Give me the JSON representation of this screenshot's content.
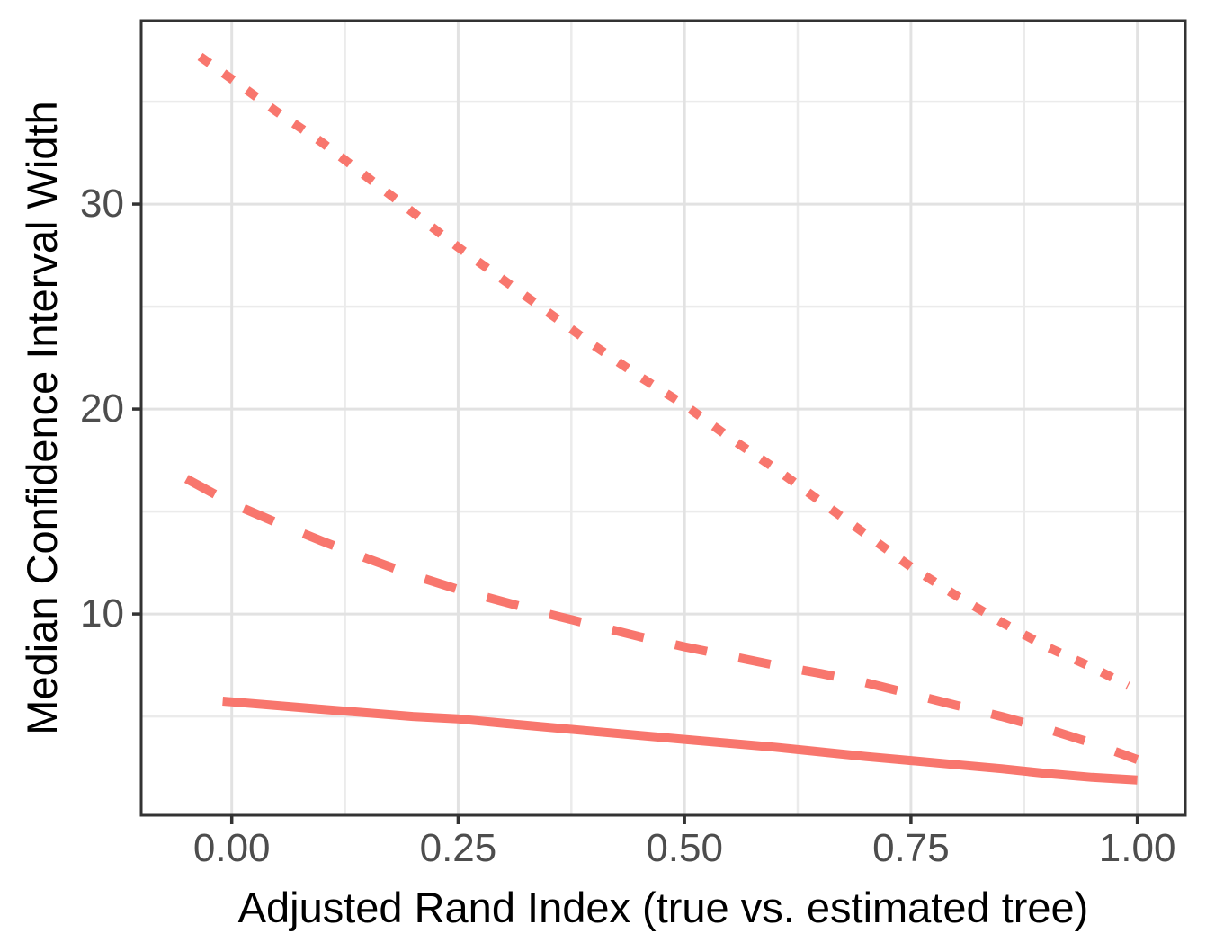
{
  "chart_data": {
    "type": "line",
    "title": "",
    "xlabel": "Adjusted Rand Index (true vs. estimated tree)",
    "ylabel": "Median Confidence Interval Width",
    "xlim": [
      -0.1,
      1.053
    ],
    "ylim": [
      0.18,
      38.95
    ],
    "grid": true,
    "legend_position": "none",
    "x_ticks": {
      "values": [
        0,
        0.25,
        0.5,
        0.75,
        1.0
      ],
      "labels": [
        "0.00",
        "0.25",
        "0.50",
        "0.75",
        "1.00"
      ]
    },
    "y_ticks": {
      "values": [
        10,
        20,
        30
      ],
      "labels": [
        "10",
        "20",
        "30"
      ]
    },
    "x_minor": [
      0.125,
      0.375,
      0.625,
      0.875
    ],
    "y_minor": [
      5,
      15,
      25,
      35
    ],
    "colors": {
      "line": "#F8766D",
      "panel_border": "#333333",
      "grid_major": "#E2E2E2",
      "grid_minor": "#EBEBEB",
      "tick_mark": "#333333",
      "tick_label": "#4D4D4D",
      "axis_title": "#000000",
      "background": "#FFFFFF"
    },
    "series": [
      {
        "name": "dotted-line",
        "linetype": "dotted",
        "points": [
          [
            -0.035,
            37.2
          ],
          [
            0.0,
            36.1
          ],
          [
            0.05,
            34.5
          ],
          [
            0.1,
            33.0
          ],
          [
            0.15,
            31.3
          ],
          [
            0.2,
            29.6
          ],
          [
            0.25,
            27.9
          ],
          [
            0.3,
            26.3
          ],
          [
            0.35,
            24.7
          ],
          [
            0.4,
            23.1
          ],
          [
            0.45,
            21.6
          ],
          [
            0.5,
            20.2
          ],
          [
            0.55,
            18.6
          ],
          [
            0.6,
            17.1
          ],
          [
            0.65,
            15.5
          ],
          [
            0.7,
            13.9
          ],
          [
            0.75,
            12.3
          ],
          [
            0.8,
            10.9
          ],
          [
            0.85,
            9.6
          ],
          [
            0.9,
            8.4
          ],
          [
            0.95,
            7.4
          ],
          [
            0.99,
            6.5
          ]
        ]
      },
      {
        "name": "dashed-line",
        "linetype": "dashed",
        "points": [
          [
            -0.05,
            16.6
          ],
          [
            0.0,
            15.4
          ],
          [
            0.05,
            14.45
          ],
          [
            0.1,
            13.55
          ],
          [
            0.15,
            12.7
          ],
          [
            0.2,
            11.9
          ],
          [
            0.25,
            11.2
          ],
          [
            0.3,
            10.6
          ],
          [
            0.35,
            10.0
          ],
          [
            0.4,
            9.45
          ],
          [
            0.45,
            8.9
          ],
          [
            0.5,
            8.4
          ],
          [
            0.55,
            7.95
          ],
          [
            0.6,
            7.5
          ],
          [
            0.65,
            7.1
          ],
          [
            0.7,
            6.65
          ],
          [
            0.75,
            6.1
          ],
          [
            0.8,
            5.55
          ],
          [
            0.85,
            5.0
          ],
          [
            0.9,
            4.4
          ],
          [
            0.95,
            3.7
          ],
          [
            1.0,
            2.9
          ]
        ]
      },
      {
        "name": "solid-line",
        "linetype": "solid",
        "points": [
          [
            -0.01,
            5.75
          ],
          [
            0.1,
            5.35
          ],
          [
            0.2,
            5.0
          ],
          [
            0.25,
            4.88
          ],
          [
            0.3,
            4.67
          ],
          [
            0.4,
            4.27
          ],
          [
            0.5,
            3.88
          ],
          [
            0.6,
            3.5
          ],
          [
            0.7,
            3.05
          ],
          [
            0.75,
            2.85
          ],
          [
            0.8,
            2.65
          ],
          [
            0.85,
            2.45
          ],
          [
            0.9,
            2.22
          ],
          [
            0.95,
            2.03
          ],
          [
            1.0,
            1.9
          ]
        ]
      }
    ]
  }
}
